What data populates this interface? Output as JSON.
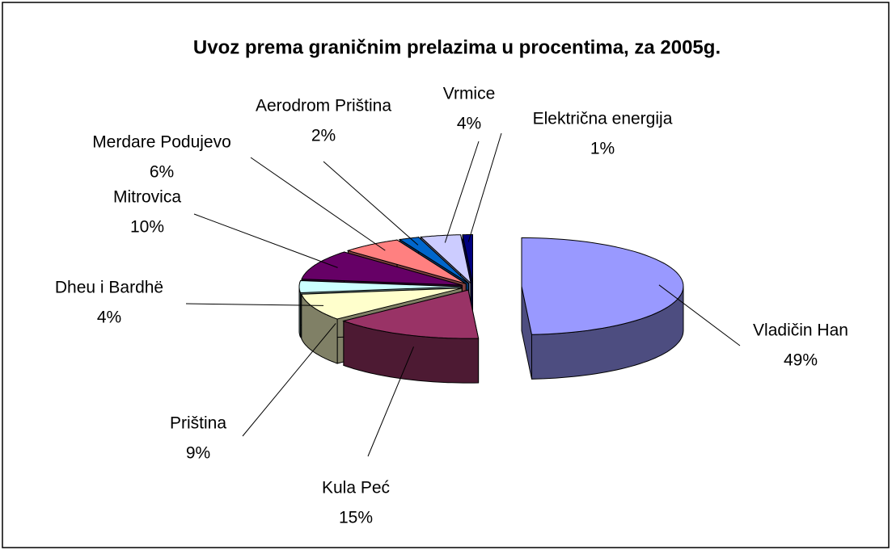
{
  "chart_data": {
    "type": "pie3d",
    "title": "Uvoz prema graničnim prelazima u procentima, za 2005g.",
    "categories": [
      "Vladičin Han",
      "Kula Peć",
      "Priština",
      "Dheu i Bardhë",
      "Mitrovica",
      "Merdare Podujevo",
      "Aerodrom Priština",
      "Vrmice",
      "Električna energija"
    ],
    "values": [
      49,
      15,
      9,
      4,
      10,
      6,
      2,
      4,
      1
    ],
    "value_labels": [
      "49%",
      "15%",
      "9%",
      "4%",
      "10%",
      "6%",
      "2%",
      "4%",
      "1%"
    ],
    "colors": [
      "#9999ff",
      "#993366",
      "#ffffcc",
      "#ccffff",
      "#660066",
      "#ff8080",
      "#0066cc",
      "#ccccff",
      "#000080"
    ]
  }
}
